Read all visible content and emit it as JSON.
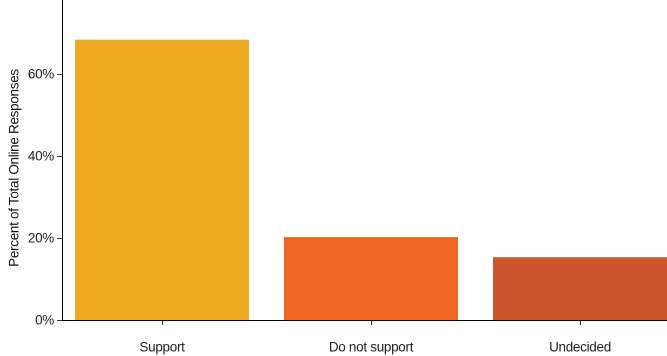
{
  "chart_data": {
    "type": "bar",
    "categories": [
      "Support",
      "Do not support",
      "Undecided"
    ],
    "values": [
      68.3,
      20.2,
      15.3
    ],
    "colors": [
      "#EDAA22",
      "#EF6623",
      "#CC552E"
    ],
    "ylabel": "Percent of Total Online Responses",
    "ytick_values": [
      0,
      20,
      40,
      60
    ],
    "ytick_labels": [
      "0%",
      "20%",
      "40%",
      "60%"
    ],
    "ylim": [
      0,
      77
    ],
    "grid": false,
    "legend": "none"
  }
}
